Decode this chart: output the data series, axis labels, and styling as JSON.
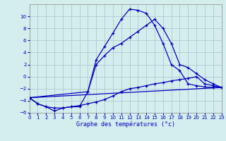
{
  "title": "Graphe des températures (°c)",
  "bg_color": "#d4eeee",
  "grid_color": "#aacccc",
  "line_color": "#0000bb",
  "xlim": [
    0,
    23
  ],
  "ylim": [
    -6,
    12
  ],
  "yticks": [
    -6,
    -4,
    -2,
    0,
    2,
    4,
    6,
    8,
    10
  ],
  "xticks": [
    0,
    1,
    2,
    3,
    4,
    5,
    6,
    7,
    8,
    9,
    10,
    11,
    12,
    13,
    14,
    15,
    16,
    17,
    18,
    19,
    20,
    21,
    22,
    23
  ],
  "curve1_x": [
    0,
    1,
    2,
    3,
    4,
    5,
    6,
    7,
    8,
    9,
    10,
    11,
    12,
    13,
    14,
    15,
    16,
    17,
    18,
    19,
    20,
    21,
    22,
    23
  ],
  "curve1_y": [
    -3.5,
    -4.5,
    -5.0,
    -5.7,
    -5.2,
    -5.0,
    -5.0,
    -2.5,
    2.8,
    5.0,
    7.2,
    9.5,
    11.2,
    11.0,
    10.5,
    8.5,
    5.5,
    2.0,
    1.0,
    -1.2,
    -1.5,
    -1.7,
    -1.8,
    -1.8
  ],
  "curve2_x": [
    0,
    1,
    2,
    3,
    4,
    5,
    6,
    7,
    8,
    9,
    10,
    11,
    12,
    13,
    14,
    15,
    16,
    17,
    18,
    19,
    20,
    21,
    22,
    23
  ],
  "curve2_y": [
    -3.5,
    -4.5,
    -5.0,
    -5.2,
    -5.2,
    -5.0,
    -4.8,
    -4.5,
    -4.2,
    -3.8,
    -3.2,
    -2.5,
    -2.0,
    -1.8,
    -1.5,
    -1.2,
    -1.0,
    -0.7,
    -0.5,
    -0.3,
    0.0,
    -1.2,
    -1.5,
    -1.8
  ],
  "curve3_x": [
    0,
    23
  ],
  "curve3_y": [
    -3.5,
    -1.8
  ],
  "curve4_x": [
    0,
    7,
    8,
    9,
    10,
    11,
    12,
    13,
    14,
    15,
    16,
    17,
    18,
    19,
    20,
    21,
    22,
    23
  ],
  "curve4_y": [
    -3.5,
    -2.5,
    2.0,
    3.5,
    4.8,
    5.5,
    6.5,
    7.5,
    8.5,
    9.5,
    8.0,
    5.5,
    2.0,
    1.5,
    0.5,
    -0.5,
    -1.2,
    -1.8
  ]
}
